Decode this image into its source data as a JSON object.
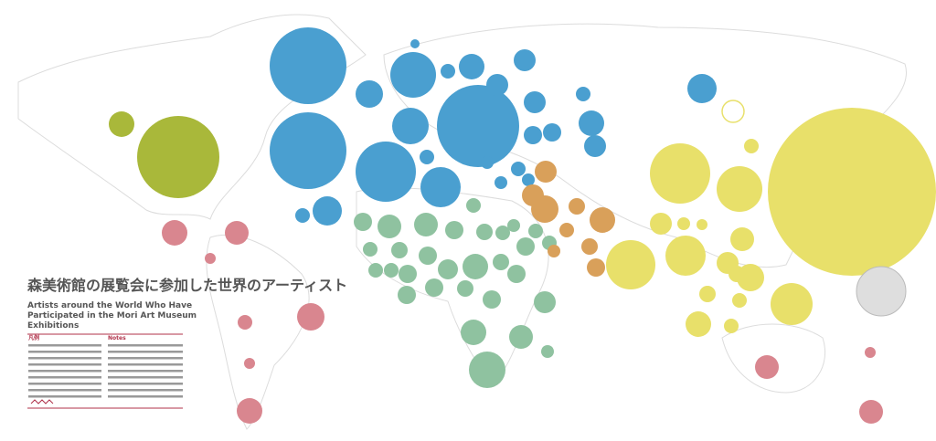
{
  "header": {
    "title": "森美術館の展覧会に参加した世界のアーティスト",
    "subtitle": "Artists around the World Who Have Participated in the Mori Art Museum Exhibitions"
  },
  "legend": {
    "left_heading": "凡例",
    "right_heading": "Notes"
  }
}
